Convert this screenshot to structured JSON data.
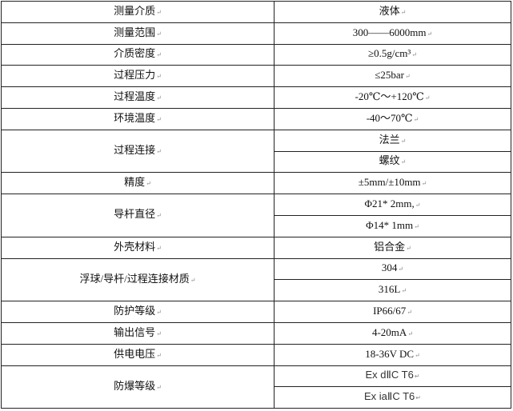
{
  "rows": [
    {
      "label": "测量介质",
      "values": [
        "液体"
      ]
    },
    {
      "label": "测量范围",
      "values": [
        "300——6000mm"
      ]
    },
    {
      "label": "介质密度",
      "values": [
        "≥0.5g/cm³"
      ]
    },
    {
      "label": "过程压力",
      "values": [
        "≤25bar"
      ]
    },
    {
      "label": "过程温度",
      "values": [
        "-20℃～+120℃"
      ]
    },
    {
      "label": "环境温度",
      "values": [
        "-40～70℃"
      ]
    },
    {
      "label": "过程连接",
      "values": [
        "法兰",
        "螺纹"
      ]
    },
    {
      "label": "精度",
      "values": [
        "±5mm/±10mm"
      ]
    },
    {
      "label": "导杆直径",
      "values": [
        "Φ21* 2mm,",
        "Φ14* 1mm"
      ]
    },
    {
      "label": "外壳材料",
      "values": [
        "铝合金"
      ]
    },
    {
      "label": "浮球/导杆/过程连接材质",
      "values": [
        "304",
        "316L"
      ]
    },
    {
      "label": "防护等级",
      "values": [
        "IP66/67"
      ]
    },
    {
      "label": "输出信号",
      "values": [
        "4-20mA"
      ]
    },
    {
      "label": "供电电压",
      "values": [
        "18-36V DC"
      ]
    },
    {
      "label": "防爆等级",
      "values": [
        "Ex dⅡC T6",
        "Ex iaⅡC T6"
      ]
    }
  ]
}
